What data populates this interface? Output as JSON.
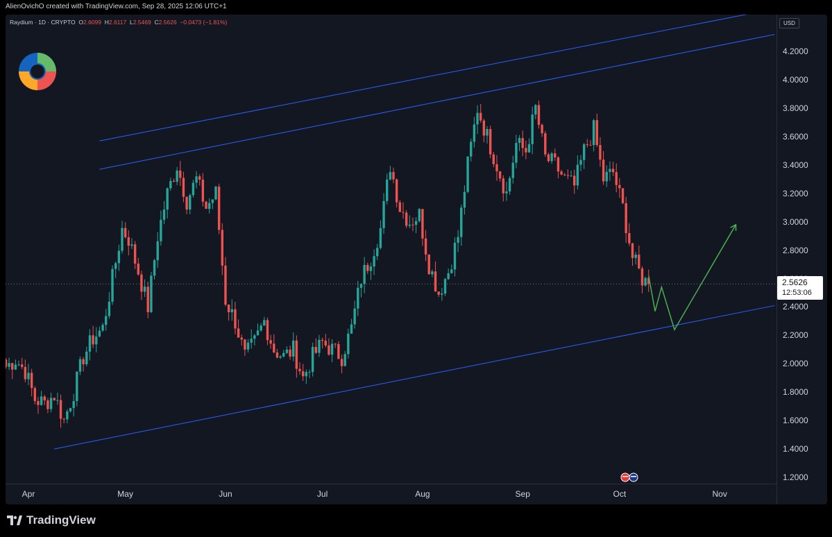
{
  "header": {
    "credit": "AlienOvichO created with TradingView.com, Sep 28, 2025 12:06 UTC+1"
  },
  "symbol": {
    "name": "Raydium · 1D · CRYPTO",
    "open_label": "O",
    "open": "2.6099",
    "high_label": "H",
    "high": "2.6117",
    "low_label": "L",
    "low": "2.5469",
    "close_label": "C",
    "close": "2.5626",
    "change": "−0.0473 (−1.81%)"
  },
  "price_scale": {
    "currency": "USD",
    "last_price": "2.5626",
    "countdown": "12:53:06"
  },
  "footer": {
    "brand": "TradingView"
  },
  "icons": {
    "logo": "raydium-logo-icon",
    "events": "us-flag-icon",
    "brand": "tradingview-logo-icon"
  },
  "colors": {
    "up": "#26a69a",
    "down": "#ef5350",
    "channel": "#2962ff",
    "projection": "#4caf50",
    "background": "#131722"
  },
  "chart_data": {
    "type": "candlestick",
    "title": "",
    "xlabel": "",
    "ylabel": "",
    "ylim": [
      1.15,
      4.35
    ],
    "y_ticks": [
      "1.2000",
      "1.4000",
      "1.6000",
      "1.8000",
      "2.0000",
      "2.2000",
      "2.4000",
      "2.6000",
      "2.8000",
      "3.0000",
      "3.2000",
      "3.4000",
      "3.6000",
      "3.8000",
      "4.0000",
      "4.2000"
    ],
    "x_ticks": [
      {
        "label": "Apr",
        "day": 0
      },
      {
        "label": "May",
        "day": 30
      },
      {
        "label": "Jun",
        "day": 61
      },
      {
        "label": "Jul",
        "day": 91
      },
      {
        "label": "Aug",
        "day": 122
      },
      {
        "label": "Sep",
        "day": 153
      },
      {
        "label": "Oct",
        "day": 183
      },
      {
        "label": "Nov",
        "day": 214
      }
    ],
    "x_axis_note": "day = days since Apr 1, 2025 (daily candles)",
    "close_series": [
      {
        "day": -7,
        "close": 1.98
      },
      {
        "day": -4,
        "close": 2.03
      },
      {
        "day": -1,
        "close": 1.95
      },
      {
        "day": 2,
        "close": 1.75
      },
      {
        "day": 5,
        "close": 1.72
      },
      {
        "day": 8,
        "close": 1.78
      },
      {
        "day": 11,
        "close": 1.6
      },
      {
        "day": 14,
        "close": 1.8
      },
      {
        "day": 17,
        "close": 2.05
      },
      {
        "day": 20,
        "close": 2.18
      },
      {
        "day": 23,
        "close": 2.25
      },
      {
        "day": 26,
        "close": 2.6
      },
      {
        "day": 29,
        "close": 2.95
      },
      {
        "day": 31,
        "close": 2.88
      },
      {
        "day": 34,
        "close": 2.65
      },
      {
        "day": 37,
        "close": 2.4
      },
      {
        "day": 40,
        "close": 2.9
      },
      {
        "day": 43,
        "close": 3.2
      },
      {
        "day": 46,
        "close": 3.4
      },
      {
        "day": 49,
        "close": 3.15
      },
      {
        "day": 52,
        "close": 3.3
      },
      {
        "day": 55,
        "close": 3.1
      },
      {
        "day": 58,
        "close": 3.2
      },
      {
        "day": 61,
        "close": 2.45
      },
      {
        "day": 64,
        "close": 2.3
      },
      {
        "day": 67,
        "close": 2.05
      },
      {
        "day": 70,
        "close": 2.15
      },
      {
        "day": 73,
        "close": 2.3
      },
      {
        "day": 76,
        "close": 2.1
      },
      {
        "day": 79,
        "close": 2.05
      },
      {
        "day": 82,
        "close": 2.1
      },
      {
        "day": 85,
        "close": 1.9
      },
      {
        "day": 88,
        "close": 2.05
      },
      {
        "day": 91,
        "close": 2.15
      },
      {
        "day": 94,
        "close": 2.1
      },
      {
        "day": 97,
        "close": 2.05
      },
      {
        "day": 100,
        "close": 2.25
      },
      {
        "day": 103,
        "close": 2.6
      },
      {
        "day": 106,
        "close": 2.75
      },
      {
        "day": 109,
        "close": 2.95
      },
      {
        "day": 112,
        "close": 3.4
      },
      {
        "day": 115,
        "close": 3.1
      },
      {
        "day": 118,
        "close": 3.0
      },
      {
        "day": 121,
        "close": 3.05
      },
      {
        "day": 124,
        "close": 2.7
      },
      {
        "day": 127,
        "close": 2.5
      },
      {
        "day": 130,
        "close": 2.65
      },
      {
        "day": 133,
        "close": 2.9
      },
      {
        "day": 136,
        "close": 3.4
      },
      {
        "day": 139,
        "close": 3.8
      },
      {
        "day": 142,
        "close": 3.6
      },
      {
        "day": 145,
        "close": 3.4
      },
      {
        "day": 148,
        "close": 3.2
      },
      {
        "day": 151,
        "close": 3.55
      },
      {
        "day": 154,
        "close": 3.5
      },
      {
        "day": 157,
        "close": 3.8
      },
      {
        "day": 160,
        "close": 3.45
      },
      {
        "day": 163,
        "close": 3.4
      },
      {
        "day": 166,
        "close": 3.3
      },
      {
        "day": 169,
        "close": 3.25
      },
      {
        "day": 172,
        "close": 3.5
      },
      {
        "day": 175,
        "close": 3.65
      },
      {
        "day": 178,
        "close": 3.3
      },
      {
        "day": 181,
        "close": 3.35
      },
      {
        "day": 184,
        "close": 3.1
      },
      {
        "day": 187,
        "close": 2.75
      },
      {
        "day": 190,
        "close": 2.6
      },
      {
        "day": 192,
        "close": 2.56
      }
    ],
    "last_close": 2.5626,
    "drawings": {
      "channel_upper_outer": [
        {
          "day": 22,
          "price": 3.57
        },
        {
          "day": 231,
          "price": 4.5
        }
      ],
      "channel_upper_inner": [
        {
          "day": 22,
          "price": 3.37
        },
        {
          "day": 231,
          "price": 4.32
        }
      ],
      "channel_lower": [
        {
          "day": 8,
          "price": 1.4
        },
        {
          "day": 231,
          "price": 2.41
        }
      ],
      "projection": [
        {
          "day": 192,
          "price": 2.62
        },
        {
          "day": 194,
          "price": 2.37
        },
        {
          "day": 196,
          "price": 2.54
        },
        {
          "day": 200,
          "price": 2.24
        },
        {
          "day": 219,
          "price": 2.98
        }
      ]
    }
  }
}
